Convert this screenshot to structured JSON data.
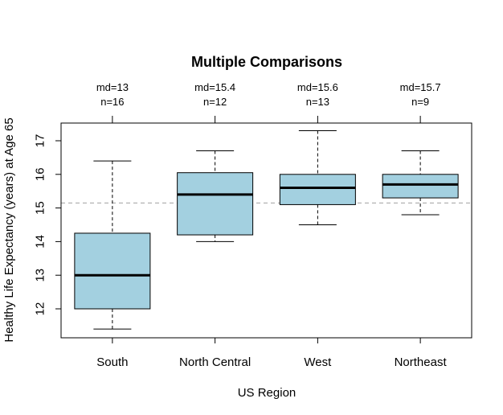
{
  "chart_data": {
    "type": "boxplot",
    "title": "Multiple Comparisons",
    "xlabel": "US Region",
    "ylabel": "Healthy Life Expectancy (years) at Age 65",
    "ylim": [
      11.2,
      17.5
    ],
    "yticks": [
      12,
      13,
      14,
      15,
      16,
      17
    ],
    "reference_line": 15.15,
    "box_color": "#a3d0e0",
    "reference_line_color": "#a0a0a0",
    "categories": [
      "South",
      "North Central",
      "West",
      "Northeast"
    ],
    "groups": [
      {
        "name": "South",
        "md_label": "md=13",
        "n_label": "n=16",
        "whisker_low": 11.4,
        "q1": 12.0,
        "median": 13.0,
        "q3": 14.25,
        "whisker_high": 16.4
      },
      {
        "name": "North Central",
        "md_label": "md=15.4",
        "n_label": "n=12",
        "whisker_low": 14.0,
        "q1": 14.2,
        "median": 15.4,
        "q3": 16.05,
        "whisker_high": 16.7
      },
      {
        "name": "West",
        "md_label": "md=15.6",
        "n_label": "n=13",
        "whisker_low": 14.5,
        "q1": 15.1,
        "median": 15.6,
        "q3": 16.0,
        "whisker_high": 17.3
      },
      {
        "name": "Northeast",
        "md_label": "md=15.7",
        "n_label": "n=9",
        "whisker_low": 14.8,
        "q1": 15.3,
        "median": 15.7,
        "q3": 16.0,
        "whisker_high": 16.7
      }
    ]
  }
}
